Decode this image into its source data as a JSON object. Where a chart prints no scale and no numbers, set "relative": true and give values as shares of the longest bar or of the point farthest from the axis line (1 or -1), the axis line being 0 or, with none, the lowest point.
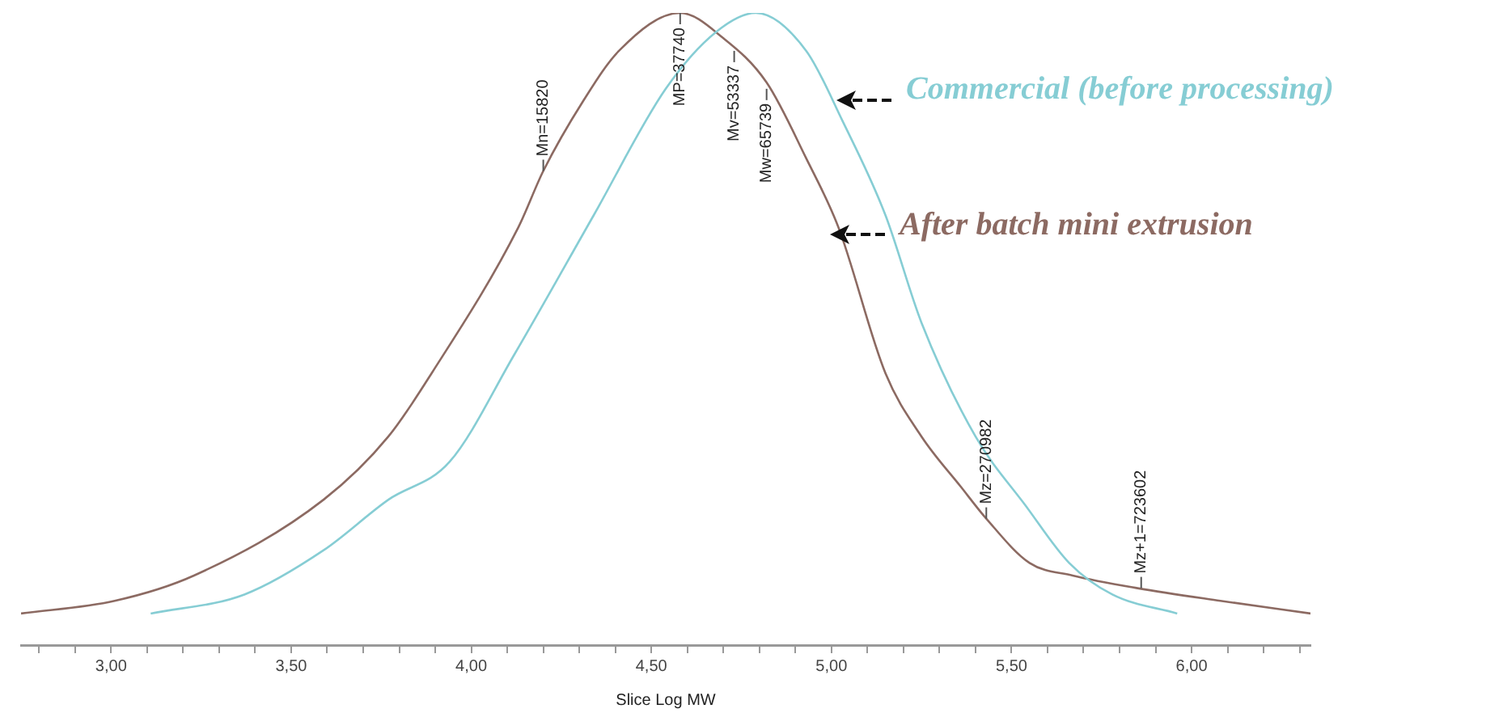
{
  "chart_data": {
    "type": "line",
    "relative": true,
    "xlabel": "Slice Log MW",
    "xlim": [
      2.75,
      6.33
    ],
    "xticks": [
      {
        "value": 2.8,
        "label": null
      },
      {
        "value": 2.9,
        "label": null
      },
      {
        "value": 3,
        "label": "3,00"
      },
      {
        "value": 3.1,
        "label": null
      },
      {
        "value": 3.2,
        "label": null
      },
      {
        "value": 3.3,
        "label": null
      },
      {
        "value": 3.4,
        "label": null
      },
      {
        "value": 3.5,
        "label": "3,50"
      },
      {
        "value": 3.6,
        "label": null
      },
      {
        "value": 3.7,
        "label": null
      },
      {
        "value": 3.8,
        "label": null
      },
      {
        "value": 3.9,
        "label": null
      },
      {
        "value": 4,
        "label": "4,00"
      },
      {
        "value": 4.1,
        "label": null
      },
      {
        "value": 4.2,
        "label": null
      },
      {
        "value": 4.3,
        "label": null
      },
      {
        "value": 4.4,
        "label": null
      },
      {
        "value": 4.5,
        "label": "4,50"
      },
      {
        "value": 4.6,
        "label": null
      },
      {
        "value": 4.7,
        "label": null
      },
      {
        "value": 4.8,
        "label": null
      },
      {
        "value": 4.9,
        "label": null
      },
      {
        "value": 5,
        "label": "5,00"
      },
      {
        "value": 5.1,
        "label": null
      },
      {
        "value": 5.2,
        "label": null
      },
      {
        "value": 5.3,
        "label": null
      },
      {
        "value": 5.4,
        "label": null
      },
      {
        "value": 5.5,
        "label": "5,50"
      },
      {
        "value": 5.6,
        "label": null
      },
      {
        "value": 5.7,
        "label": null
      },
      {
        "value": 5.8,
        "label": null
      },
      {
        "value": 5.9,
        "label": null
      },
      {
        "value": 6,
        "label": "6,00"
      },
      {
        "value": 6.1,
        "label": null
      },
      {
        "value": 6.2,
        "label": null
      },
      {
        "value": 6.3,
        "label": null
      }
    ],
    "series": [
      {
        "name": "Commercial (before processing)",
        "color": "#86cdd4",
        "x": [
          3.11,
          3.37,
          3.59,
          3.77,
          3.94,
          4.12,
          4.34,
          4.54,
          4.68,
          4.79,
          4.93,
          5.03,
          5.15,
          5.25,
          5.4,
          5.54,
          5.66,
          5.78,
          5.96
        ],
        "values": [
          0.05,
          0.08,
          0.15,
          0.23,
          0.29,
          0.46,
          0.68,
          0.88,
          0.97,
          1.0,
          0.94,
          0.83,
          0.68,
          0.51,
          0.33,
          0.22,
          0.13,
          0.08,
          0.05
        ]
      },
      {
        "name": "After batch mini extrusion",
        "color": "#8c6a62",
        "x": [
          2.75,
          3.01,
          3.23,
          3.59,
          3.77,
          3.89,
          4.13,
          4.2,
          4.31,
          4.41,
          4.58,
          4.7,
          4.82,
          4.93,
          5.02,
          5.15,
          5.25,
          5.36,
          5.43,
          5.55,
          5.67,
          5.85,
          6.08,
          6.33
        ],
        "values": [
          0.05,
          0.07,
          0.11,
          0.23,
          0.33,
          0.43,
          0.66,
          0.75,
          0.86,
          0.94,
          1.0,
          0.96,
          0.89,
          0.77,
          0.66,
          0.43,
          0.33,
          0.25,
          0.2,
          0.13,
          0.11,
          0.09,
          0.07,
          0.05
        ]
      }
    ],
    "annotations": [
      {
        "text": "Mn=15820",
        "x": 4.2,
        "y": 0.75
      },
      {
        "text": "MP=37740",
        "x": 4.58,
        "y": 1.0
      },
      {
        "text": "Mv=53337",
        "x": 4.73,
        "y": 0.94
      },
      {
        "text": "Mw=65739",
        "x": 4.82,
        "y": 0.88
      },
      {
        "text": "Mz=270982",
        "x": 5.43,
        "y": 0.2
      },
      {
        "text": "Mz+1=723602",
        "x": 5.86,
        "y": 0.09
      }
    ],
    "grid": false,
    "legend": false,
    "tick_labels": "x",
    "marker": "none",
    "line_style": "solid"
  }
}
